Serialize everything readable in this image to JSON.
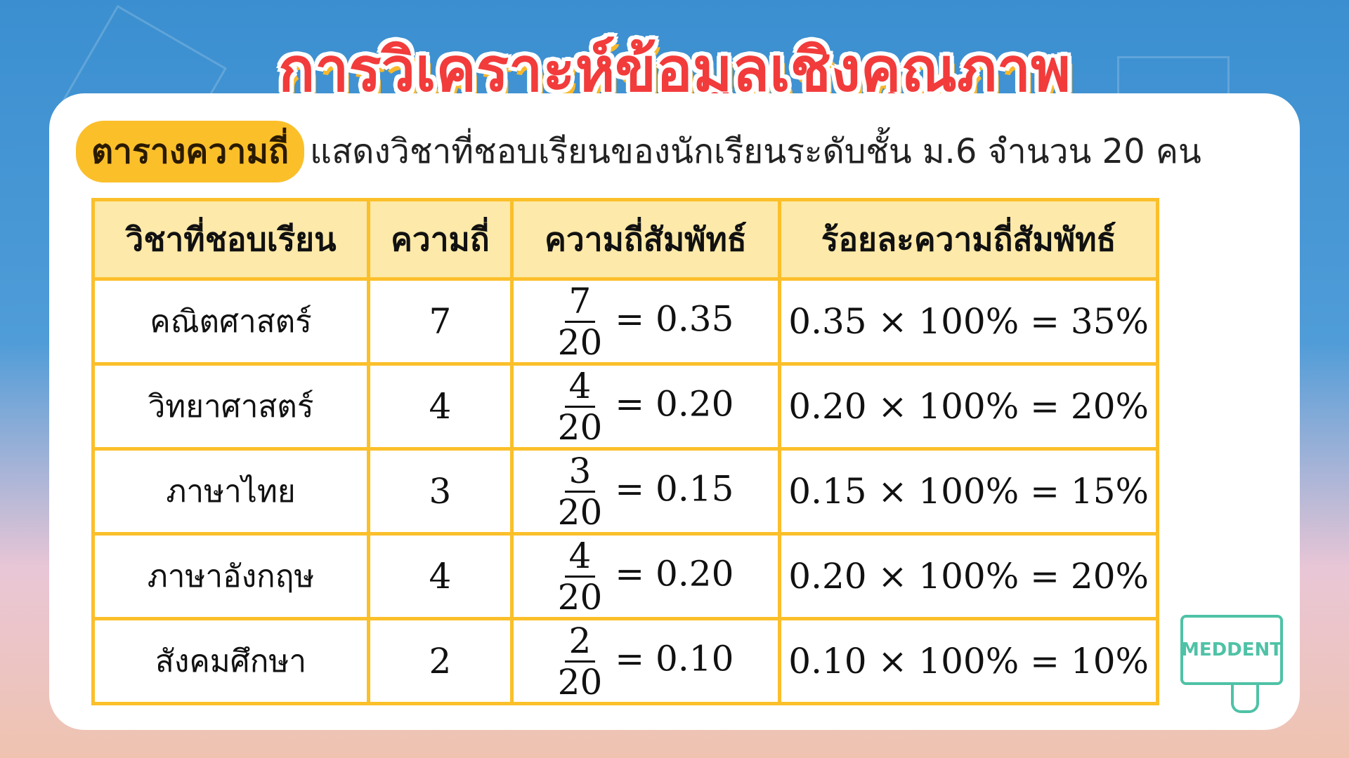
{
  "title": "การวิเคราะห์ข้อมูลเชิงคุณภาพ",
  "subtitle": {
    "highlight": "ตารางความถี่",
    "text": "แสดงวิชาที่ชอบเรียนของนักเรียนระดับชั้น ม.6 จำนวน 20 คน"
  },
  "table": {
    "headers": [
      "วิชาที่ชอบเรียน",
      "ความถี่",
      "ความถี่สัมพัทธ์",
      "ร้อยละความถี่สัมพัทธ์"
    ],
    "rows": [
      {
        "subject": "คณิตศาสตร์",
        "freq": "7",
        "num": "7",
        "den": "20",
        "rel": "= 0.35",
        "pct": "0.35 × 100% = 35%"
      },
      {
        "subject": "วิทยาศาสตร์",
        "freq": "4",
        "num": "4",
        "den": "20",
        "rel": "= 0.20",
        "pct": "0.20 × 100% = 20%"
      },
      {
        "subject": "ภาษาไทย",
        "freq": "3",
        "num": "3",
        "den": "20",
        "rel": "= 0.15",
        "pct": "0.15 × 100% = 15%"
      },
      {
        "subject": "ภาษาอังกฤษ",
        "freq": "4",
        "num": "4",
        "den": "20",
        "rel": "= 0.20",
        "pct": "0.20 × 100% = 20%"
      },
      {
        "subject": "สังคมศึกษา",
        "freq": "2",
        "num": "2",
        "den": "20",
        "rel": "= 0.10",
        "pct": "0.10 × 100% = 10%"
      }
    ]
  },
  "logo": "MEDDENT",
  "colors": {
    "accent": "#fbbf2a",
    "title": "#f23b3b",
    "header_bg": "#fde9a9",
    "logo": "#4fc2a6"
  }
}
